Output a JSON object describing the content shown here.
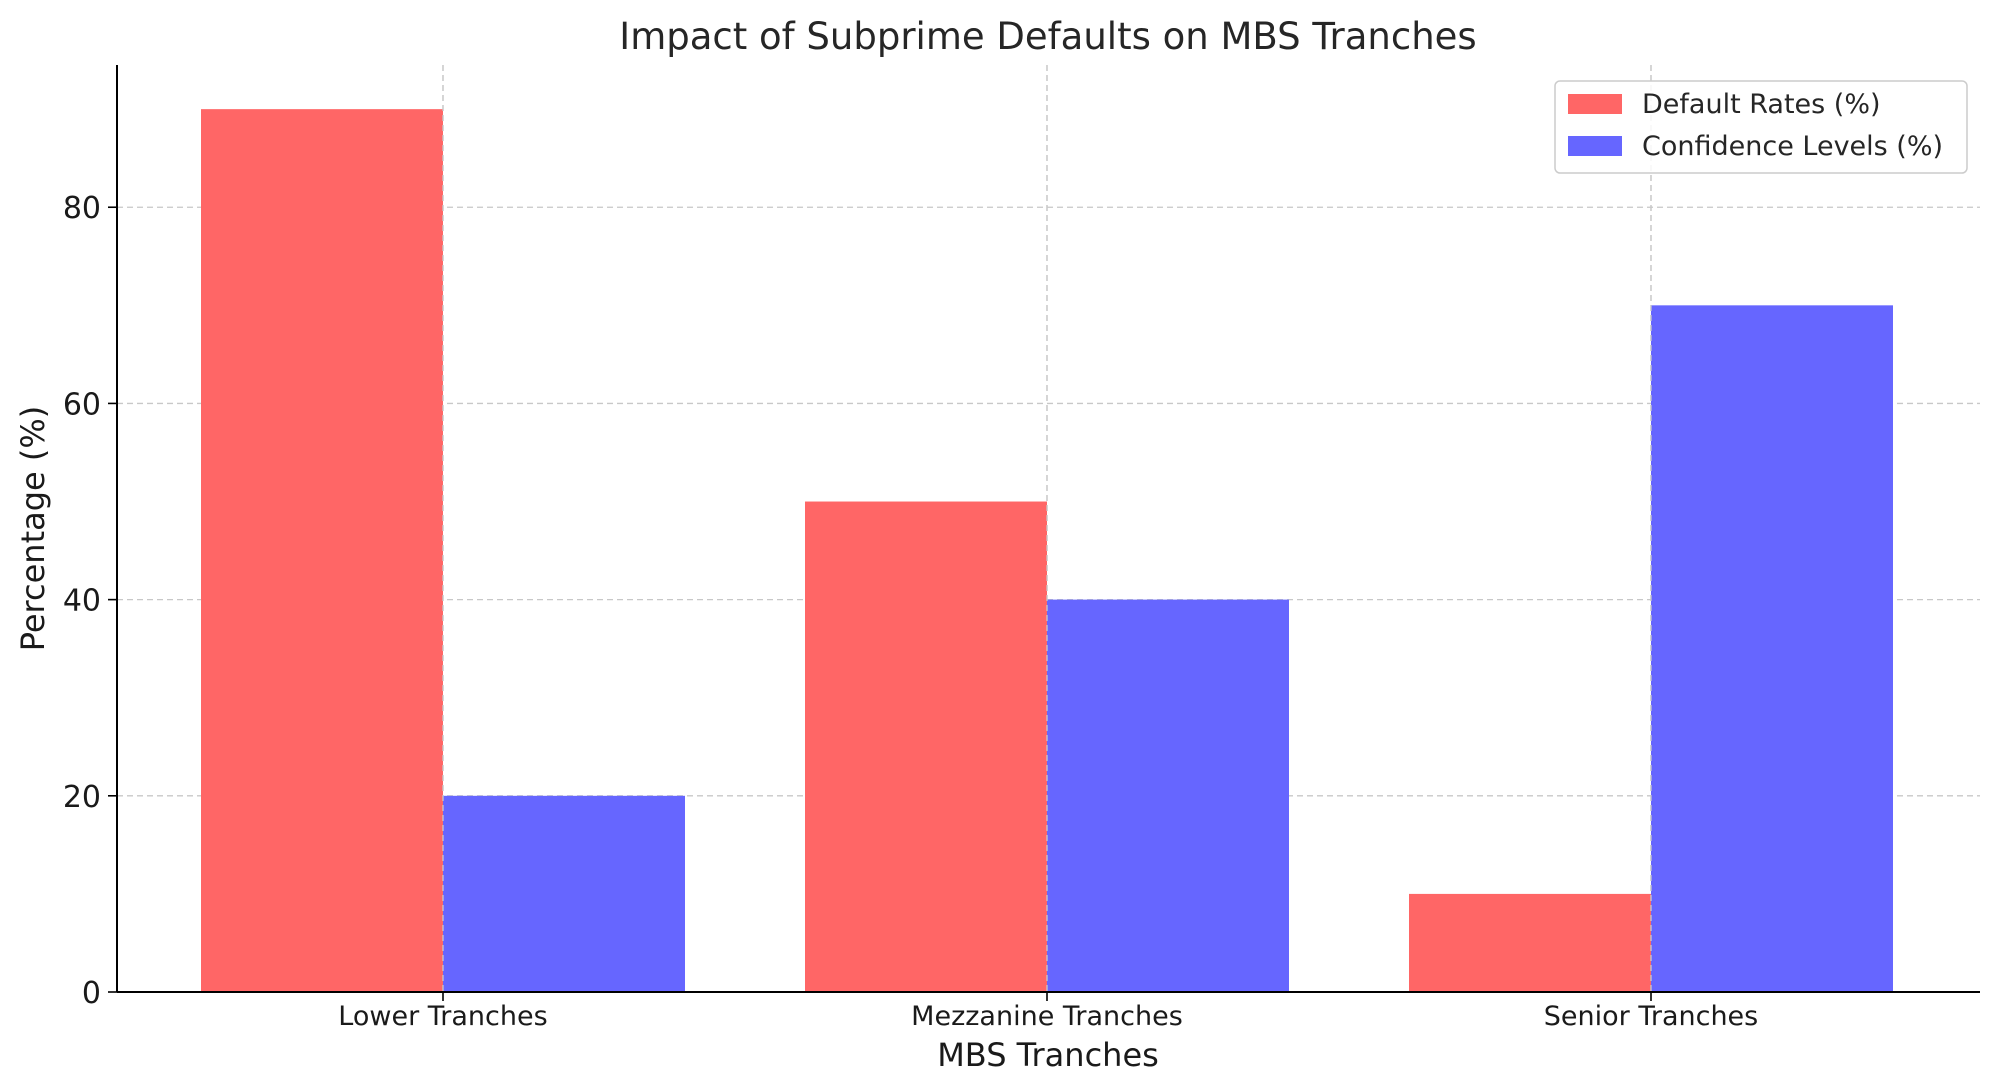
{
  "chart_data": {
    "type": "bar",
    "title": "Impact of Subprime Defaults on MBS Tranches",
    "xlabel": "MBS Tranches",
    "ylabel": "Percentage (%)",
    "categories": [
      "Lower Tranches",
      "Mezzanine Tranches",
      "Senior Tranches"
    ],
    "series": [
      {
        "name": "Default Rates (%)",
        "values": [
          90,
          50,
          10
        ],
        "color": "#ff6666"
      },
      {
        "name": "Confidence Levels (%)",
        "values": [
          20,
          40,
          70
        ],
        "color": "#6666ff"
      }
    ],
    "ylim": [
      0,
      94.5
    ],
    "yticks": [
      0,
      20,
      40,
      60,
      80
    ],
    "grid": true,
    "legend_position": "top-right"
  }
}
